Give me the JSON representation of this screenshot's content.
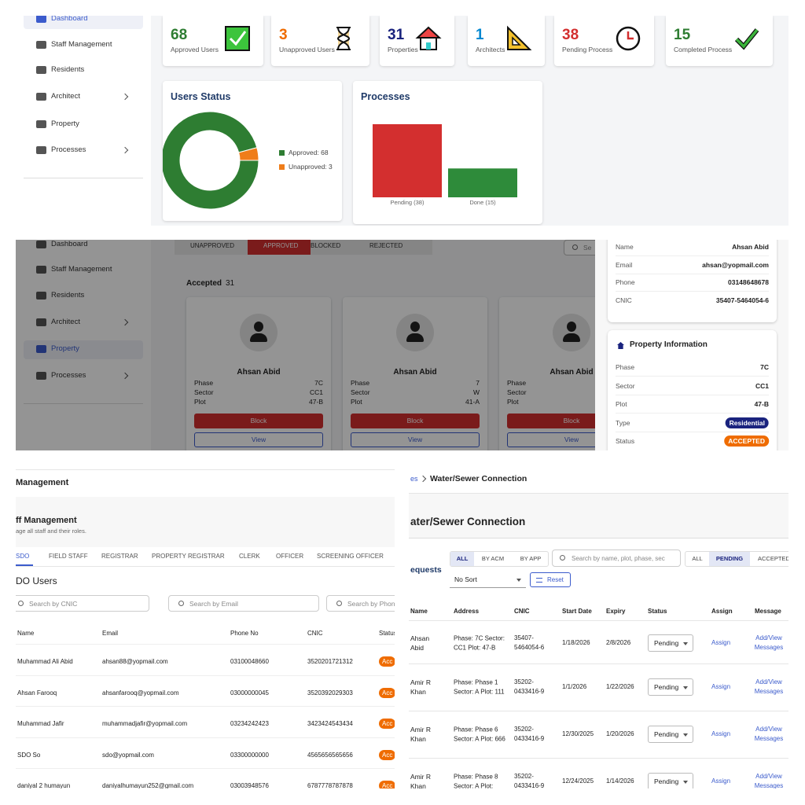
{
  "dashboard": {
    "sidebar": [
      "Dashboard",
      "Staff Management",
      "Residents",
      "Architect",
      "Property",
      "Processes"
    ],
    "stats": [
      {
        "value": 68,
        "label": "Approved Users",
        "color": "#2e7d32"
      },
      {
        "value": 3,
        "label": "Unapproved Users",
        "color": "#ef6c00"
      },
      {
        "value": 31,
        "label": "Properties",
        "color": "#1a237e"
      },
      {
        "value": 1,
        "label": "Architects",
        "color": "#0288d1"
      },
      {
        "value": 38,
        "label": "Pending Process",
        "color": "#d32f2f"
      },
      {
        "value": 15,
        "label": "Completed Process",
        "color": "#2e7d32"
      }
    ],
    "users_status": {
      "type": "pie",
      "title": "Users Status",
      "series": [
        {
          "name": "Approved: 68",
          "value": 68,
          "color": "#2e7d32"
        },
        {
          "name": "Unapproved: 3",
          "value": 3,
          "color": "#ef7d1a"
        }
      ]
    },
    "processes": {
      "type": "bar",
      "title": "Processes",
      "categories": [
        "Pending (38)",
        "Done (15)"
      ],
      "values": [
        38,
        15
      ],
      "colors": [
        "#d32f2f",
        "#2e8b3a"
      ]
    }
  },
  "property": {
    "tabs": [
      "UNAPPROVED",
      "APPROVED",
      "BLOCKED",
      "REJECTED"
    ],
    "search": "Se",
    "accepted_label": "Accepted",
    "accepted_count": 31,
    "fields": [
      "Phase",
      "Sector",
      "Plot"
    ],
    "buttons": [
      "Block",
      "View"
    ],
    "cards": [
      {
        "name": "Ahsan Abid",
        "values": [
          "7C",
          "CC1",
          "47-B"
        ]
      },
      {
        "name": "Ahsan Abid",
        "values": [
          "7",
          "W",
          "41-A"
        ]
      },
      {
        "name": "Ahsan Abid"
      }
    ],
    "owner": [
      [
        "Name",
        "Ahsan Abid"
      ],
      [
        "Email",
        "ahsan@yopmail.com"
      ],
      [
        "Phone",
        "03148648678"
      ],
      [
        "CNIC",
        "35407-5464054-6"
      ]
    ],
    "property_info": {
      "title": "Property Information",
      "rows": [
        [
          "Phase",
          "7C"
        ],
        [
          "Sector",
          "CC1"
        ],
        [
          "Plot",
          "47-B"
        ],
        [
          "Type",
          "Residential"
        ],
        [
          "Status",
          "ACCEPTED"
        ]
      ]
    }
  },
  "staff": {
    "header": "Management",
    "title": "ff Management",
    "subtitle": "age all staff and their roles.",
    "tabs": [
      "SDO",
      "FIELD STAFF",
      "REGISTRAR",
      "PROPERTY REGISTRAR",
      "CLERK",
      "OFFICER",
      "SCREENING OFFICER"
    ],
    "section": "DO Users",
    "searches": [
      "Search by CNIC",
      "Search by Email",
      "Search by Phon"
    ],
    "columns": [
      "Name",
      "Email",
      "Phone No",
      "CNIC",
      "Status"
    ],
    "rows": [
      [
        "Muhammad Ali Abid",
        "ahsan88@yopmail.com",
        "03100048660",
        "3520201721312",
        "Acc"
      ],
      [
        "Ahsan Farooq",
        "ahsanfarooq@yopmail.com",
        "03000000045",
        "3520392029303",
        "Acc"
      ],
      [
        "Muhammad Jafir",
        "muhammadjafir@yopmail.com",
        "03234242423",
        "3423424543434",
        "Acc"
      ],
      [
        "SDO So",
        "sdo@yopmail.com",
        "03300000000",
        "4565656565656",
        "Acc"
      ],
      [
        "daniyal 2 humayun",
        "daniyalhumayun252@gmail.com",
        "03003948576",
        "6787778787878",
        "Acc"
      ]
    ]
  },
  "water": {
    "breadcrumb": [
      "es",
      "Water/Sewer Connection"
    ],
    "heading": "ater/Sewer Connection",
    "section": "equests",
    "filters": [
      "ALL",
      "BY ACM",
      "BY APP"
    ],
    "search": "Search by name, plot, phase, sec",
    "status_filters": [
      "ALL",
      "PENDING",
      "ACCEPTED"
    ],
    "sort": "No Sort",
    "reset": "Reset",
    "columns": [
      "Name",
      "Address",
      "CNIC",
      "Start Date",
      "Expiry",
      "Status",
      "Assign",
      "Message"
    ],
    "rows": [
      [
        "Ahsan Abid",
        "Phase: 7C Sector: CC1 Plot: 47-B",
        "35407-5464054-6",
        "1/18/2026",
        "2/8/2026",
        "Pending",
        "Assign",
        "Add/View Messages"
      ],
      [
        "Amir R Khan",
        "Phase: Phase 1 Sector: A Plot: 111",
        "35202-0433416-9",
        "1/1/2026",
        "1/22/2026",
        "Pending",
        "Assign",
        "Add/View Messages"
      ],
      [
        "Amir R Khan",
        "Phase: Phase 6 Sector: A Plot: 666",
        "35202-0433416-9",
        "12/30/2025",
        "1/20/2026",
        "Pending",
        "Assign",
        "Add/View Messages"
      ],
      [
        "Amir R Khan",
        "Phase: Phase 8 Sector: A Plot:",
        "35202-0433416-9",
        "12/24/2025",
        "1/14/2026",
        "Pending",
        "Assign",
        "Add/View Messages"
      ]
    ]
  }
}
